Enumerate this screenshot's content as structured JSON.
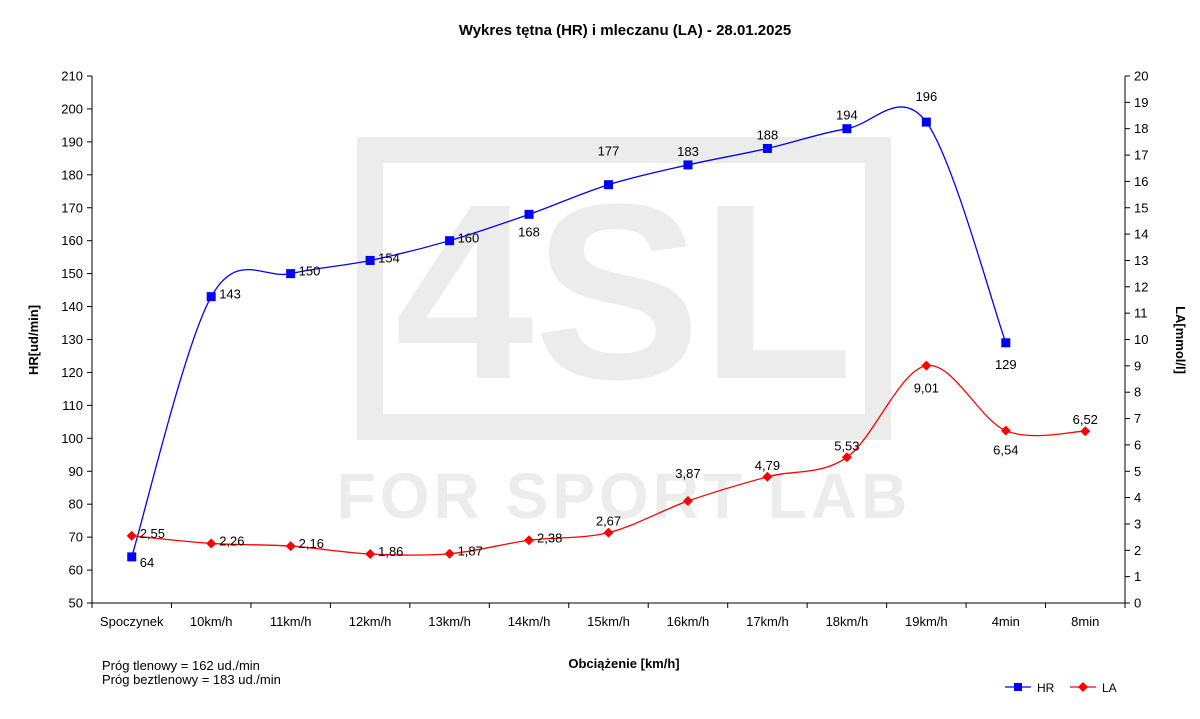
{
  "chart_data": {
    "type": "line",
    "title": "Wykres tętna (HR) i mleczanu (LA) - 28.01.2025",
    "xlabel": "Obciążenie [km/h]",
    "ylabel": "HR[ud/min]",
    "y2label": "LA[mmol/l]",
    "categories": [
      "Spoczynek",
      "10km/h",
      "11km/h",
      "12km/h",
      "13km/h",
      "14km/h",
      "15km/h",
      "16km/h",
      "17km/h",
      "18km/h",
      "19km/h",
      "4min",
      "8min"
    ],
    "ylim": [
      50,
      210
    ],
    "y2lim": [
      0,
      20
    ],
    "yticks": [
      "50",
      "60",
      "70",
      "80",
      "90",
      "100",
      "110",
      "120",
      "130",
      "140",
      "150",
      "160",
      "170",
      "180",
      "190",
      "200",
      "210"
    ],
    "y2ticks": [
      "0",
      "1",
      "2",
      "3",
      "4",
      "5",
      "6",
      "7",
      "8",
      "9",
      "10",
      "11",
      "12",
      "13",
      "14",
      "15",
      "16",
      "17",
      "18",
      "19",
      "20"
    ],
    "series": [
      {
        "name": "HR",
        "axis": "left",
        "color": "#0000ff",
        "marker": "square",
        "values": [
          64,
          143,
          150,
          154,
          160,
          168,
          177,
          183,
          188,
          194,
          196,
          129,
          null
        ],
        "labels": [
          "64",
          "143",
          "150",
          "154",
          "160",
          "168",
          "177",
          "183",
          "188",
          "194",
          "196",
          "129",
          ""
        ]
      },
      {
        "name": "LA",
        "axis": "right",
        "color": "#ff0000",
        "marker": "diamond",
        "values": [
          2.55,
          2.26,
          2.16,
          1.86,
          1.87,
          2.38,
          2.67,
          3.87,
          4.79,
          5.53,
          9.01,
          6.54,
          6.52
        ],
        "labels": [
          "2,55",
          "2,26",
          "2,16",
          "1,86",
          "1,87",
          "2,38",
          "2,67",
          "3,87",
          "4,79",
          "5,53",
          "9,01",
          "6,54",
          "6,52"
        ]
      }
    ],
    "legend": {
      "position": "bottom-right",
      "items": [
        "HR",
        "LA"
      ]
    },
    "grid": false
  },
  "notes": {
    "aerobic_threshold": "Próg tlenowy  =  162 ud./min",
    "anaerobic_threshold": "Próg beztlenowy = 183 ud./min"
  },
  "watermark": {
    "logo": "4SL",
    "text": "FOR SPORT LAB"
  }
}
